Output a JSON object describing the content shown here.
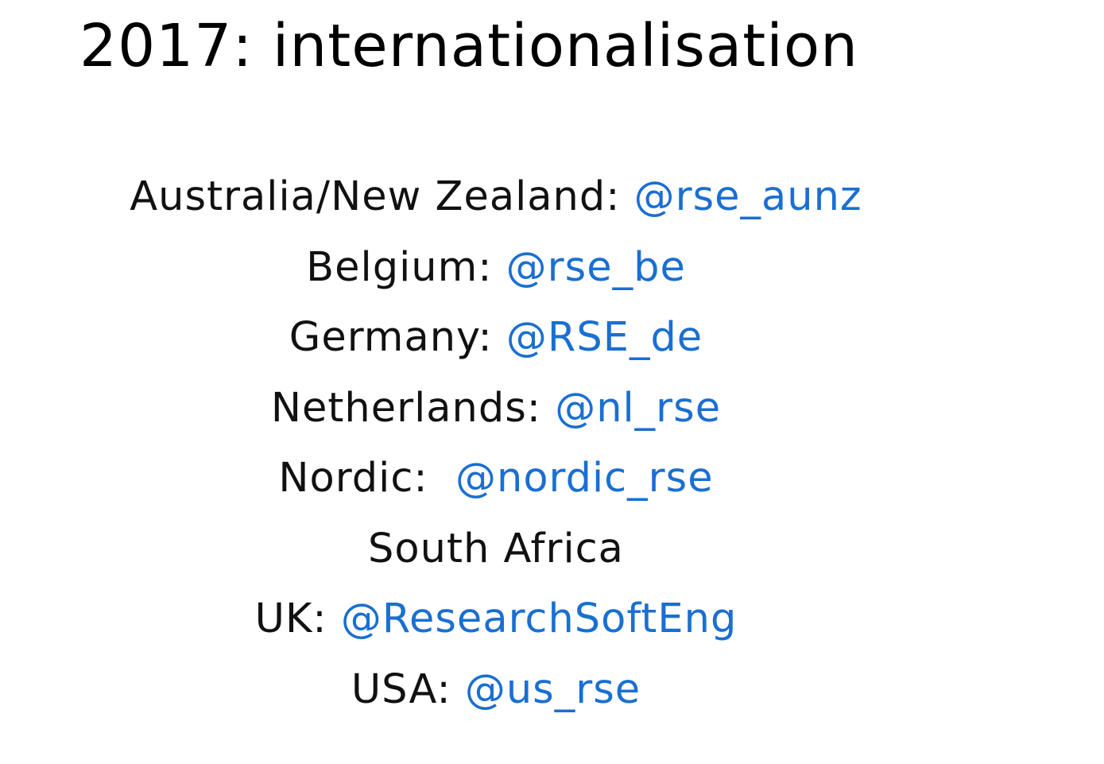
{
  "slide": {
    "title": "2017: internationalisation",
    "colors": {
      "text": "#111111",
      "link": "#1a6fd1",
      "background": "#ffffff"
    },
    "entries": [
      {
        "label": "Australia/New Zealand:",
        "handle": "@rse_aunz"
      },
      {
        "label": "Belgium:",
        "handle": "@rse_be"
      },
      {
        "label": "Germany:",
        "handle": "@RSE_de"
      },
      {
        "label": "Netherlands:",
        "handle": "@nl_rse"
      },
      {
        "label": "Nordic: ",
        "handle": "@nordic_rse"
      },
      {
        "label": "South Africa",
        "handle": ""
      },
      {
        "label": "UK:",
        "handle": "@ResearchSoftEng"
      },
      {
        "label": "USA:",
        "handle": "@us_rse"
      }
    ]
  }
}
